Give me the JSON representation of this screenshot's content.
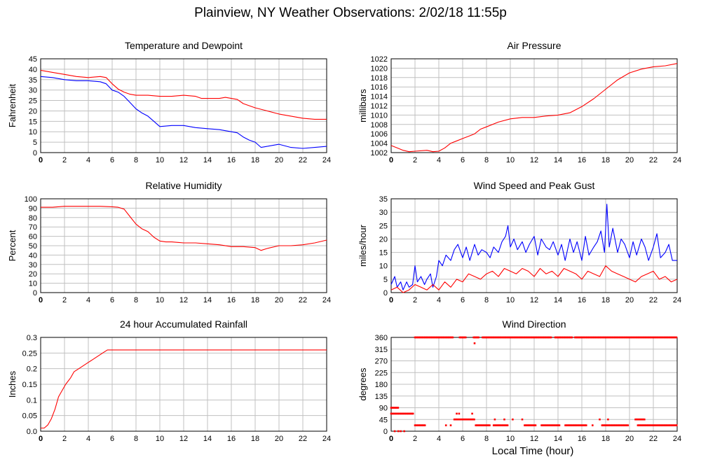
{
  "page": {
    "title": "Plainview, NY Weather Observations: 2/02/18 11:55p",
    "bottom_xlabel": "Local Time (hour)"
  },
  "colors": {
    "temperature": "#ff0000",
    "dewpoint": "#0000ff",
    "grid": "#c0c0c0"
  },
  "chart_data": [
    {
      "type": "line",
      "title": "Temperature and Dewpoint",
      "xlabel": "",
      "ylabel": "Fahrenheit",
      "xlim": [
        0,
        24
      ],
      "ylim": [
        0,
        45
      ],
      "xticks": [
        0,
        2,
        4,
        6,
        8,
        10,
        12,
        14,
        16,
        18,
        20,
        22,
        24
      ],
      "yticks": [
        0,
        5,
        10,
        15,
        20,
        25,
        30,
        35,
        40,
        45
      ],
      "series": [
        {
          "name": "",
          "color": "#ff0000",
          "x": [
            0,
            1,
            2,
            3,
            4,
            5,
            5.5,
            6,
            6.5,
            7,
            7.5,
            8,
            9,
            10,
            11,
            12,
            13,
            13.5,
            14,
            15,
            15.5,
            16,
            16.5,
            17,
            18,
            19,
            20,
            21,
            22,
            23,
            24
          ],
          "y": [
            39.5,
            38.5,
            37.5,
            36.5,
            36,
            36.5,
            36,
            33,
            30.5,
            29,
            28,
            27.5,
            27.5,
            27,
            27,
            27.5,
            27,
            26,
            26,
            26,
            26.5,
            26,
            25.5,
            23.5,
            21.5,
            20,
            18.5,
            17.5,
            16.5,
            16,
            16
          ]
        },
        {
          "name": "",
          "color": "#0000ff",
          "x": [
            0,
            1,
            2,
            3,
            4,
            5,
            5.5,
            6,
            6.5,
            7,
            7.5,
            8,
            8.5,
            9,
            9.5,
            10,
            11,
            12,
            13,
            14,
            15,
            16,
            16.5,
            17,
            17.5,
            18,
            18.5,
            19,
            20,
            21,
            22,
            23,
            24
          ],
          "y": [
            36.5,
            36,
            35,
            34.5,
            34.5,
            34,
            33,
            30,
            29,
            27,
            24,
            21,
            19,
            17.5,
            15,
            12.5,
            13,
            13,
            12,
            11.5,
            11,
            10,
            9.5,
            7.5,
            6,
            5,
            2.5,
            3,
            4,
            2.5,
            2,
            2.5,
            3
          ]
        }
      ]
    },
    {
      "type": "line",
      "title": "Air Pressure",
      "xlabel": "",
      "ylabel": "millibars",
      "xlim": [
        0,
        24
      ],
      "ylim": [
        1002,
        1022
      ],
      "xticks": [
        0,
        2,
        4,
        6,
        8,
        10,
        12,
        14,
        16,
        18,
        20,
        22,
        24
      ],
      "yticks": [
        1002,
        1004,
        1006,
        1008,
        1010,
        1012,
        1014,
        1016,
        1018,
        1020,
        1022
      ],
      "series": [
        {
          "name": "",
          "color": "#ff0000",
          "x": [
            0,
            0.5,
            1,
            1.5,
            2,
            3,
            3.5,
            4,
            4.5,
            5,
            5.5,
            6,
            6.5,
            7,
            7.5,
            8,
            9,
            10,
            11,
            12,
            13,
            14,
            15,
            16,
            17,
            18,
            19,
            20,
            21,
            22,
            23,
            24
          ],
          "y": [
            1003.5,
            1003,
            1002.5,
            1002.2,
            1002.3,
            1002.5,
            1002.2,
            1002.3,
            1003,
            1004,
            1004.5,
            1005,
            1005.5,
            1006,
            1007,
            1007.5,
            1008.5,
            1009.2,
            1009.5,
            1009.5,
            1009.8,
            1010,
            1010.5,
            1011.8,
            1013.5,
            1015.5,
            1017.5,
            1019,
            1019.8,
            1020.3,
            1020.5,
            1021
          ]
        }
      ]
    },
    {
      "type": "line",
      "title": "Relative Humidity",
      "xlabel": "",
      "ylabel": "Percent",
      "xlim": [
        0,
        24
      ],
      "ylim": [
        0,
        100
      ],
      "xticks": [
        0,
        2,
        4,
        6,
        8,
        10,
        12,
        14,
        16,
        18,
        20,
        22,
        24
      ],
      "yticks": [
        0,
        10,
        20,
        30,
        40,
        50,
        60,
        70,
        80,
        90,
        100
      ],
      "series": [
        {
          "name": "",
          "color": "#ff0000",
          "x": [
            0,
            1,
            2,
            3,
            4,
            5,
            6,
            6.5,
            7,
            7.5,
            8,
            8.5,
            9,
            9.5,
            10,
            10.5,
            11,
            12,
            13,
            14,
            15,
            16,
            17,
            18,
            18.5,
            19,
            20,
            21,
            22,
            23,
            24
          ],
          "y": [
            91,
            91,
            92,
            92,
            92,
            92,
            91.5,
            91,
            89,
            81,
            73,
            68,
            65,
            59,
            55,
            54,
            54,
            53,
            53,
            52,
            51,
            49,
            49,
            48,
            45,
            47,
            50,
            50,
            51,
            53,
            56
          ]
        }
      ]
    },
    {
      "type": "line",
      "title": "Wind Speed and Peak Gust",
      "xlabel": "",
      "ylabel": "miles/hour",
      "xlim": [
        0,
        24
      ],
      "ylim": [
        0,
        35
      ],
      "xticks": [
        0,
        2,
        4,
        6,
        8,
        10,
        12,
        14,
        16,
        18,
        20,
        22,
        24
      ],
      "yticks": [
        0,
        5,
        10,
        15,
        20,
        25,
        30,
        35
      ],
      "series": [
        {
          "name": "",
          "color": "#0000ff",
          "x": [
            0,
            0.3,
            0.5,
            0.8,
            1,
            1.3,
            1.5,
            1.8,
            2,
            2.2,
            2.5,
            2.8,
            3,
            3.3,
            3.5,
            3.8,
            4,
            4.3,
            4.6,
            5,
            5.3,
            5.6,
            6,
            6.3,
            6.6,
            7,
            7.3,
            7.6,
            8,
            8.3,
            8.6,
            9,
            9.3,
            9.6,
            9.8,
            10,
            10.3,
            10.6,
            11,
            11.3,
            11.6,
            12,
            12.3,
            12.6,
            13,
            13.3,
            13.6,
            14,
            14.3,
            14.6,
            15,
            15.3,
            15.6,
            16,
            16.3,
            16.6,
            17,
            17.3,
            17.6,
            17.9,
            18.1,
            18.3,
            18.6,
            19,
            19.3,
            19.6,
            20,
            20.3,
            20.6,
            21,
            21.3,
            21.6,
            22,
            22.3,
            22.6,
            23,
            23.3,
            23.6,
            24
          ],
          "y": [
            3,
            6,
            2,
            4,
            1,
            4,
            2,
            3,
            10,
            4,
            6,
            3,
            5,
            7,
            2,
            6,
            12,
            10,
            14,
            12,
            16,
            18,
            13,
            17,
            12,
            18,
            14,
            16,
            15,
            13,
            17,
            15,
            19,
            21,
            25,
            17,
            20,
            16,
            19,
            15,
            18,
            21,
            14,
            20,
            17,
            16,
            19,
            14,
            18,
            12,
            20,
            15,
            19,
            12,
            21,
            14,
            17,
            19,
            23,
            15,
            33,
            17,
            24,
            15,
            20,
            18,
            13,
            19,
            14,
            20,
            17,
            12,
            17,
            22,
            13,
            15,
            18,
            12,
            12
          ]
        },
        {
          "name": "",
          "color": "#ff0000",
          "x": [
            0,
            0.5,
            1,
            1.5,
            2,
            2.5,
            3,
            3.5,
            4,
            4.5,
            5,
            5.5,
            6,
            6.5,
            7,
            7.5,
            8,
            8.5,
            9,
            9.5,
            10,
            10.5,
            11,
            11.5,
            12,
            12.5,
            13,
            13.5,
            14,
            14.5,
            15,
            15.5,
            16,
            16.5,
            17,
            17.5,
            18,
            18.5,
            19,
            19.5,
            20,
            20.5,
            21,
            21.5,
            22,
            22.5,
            23,
            23.5,
            24
          ],
          "y": [
            1,
            2,
            0,
            1,
            3,
            2,
            1,
            3,
            1,
            4,
            2,
            5,
            4,
            7,
            6,
            5,
            7,
            8,
            6,
            9,
            8,
            7,
            9,
            8,
            6,
            9,
            7,
            8,
            6,
            9,
            8,
            7,
            5,
            8,
            7,
            6,
            10,
            8,
            7,
            6,
            5,
            4,
            6,
            7,
            8,
            5,
            6,
            4,
            5
          ]
        }
      ]
    },
    {
      "type": "line",
      "title": "24 hour Accumulated Rainfall",
      "xlabel": "",
      "ylabel": "Inches",
      "xlim": [
        0,
        24
      ],
      "ylim": [
        0,
        0.3
      ],
      "xticks": [
        0,
        2,
        4,
        6,
        8,
        10,
        12,
        14,
        16,
        18,
        20,
        22,
        24
      ],
      "yticks": [
        0,
        0.05,
        0.1,
        0.15,
        0.2,
        0.25,
        0.3
      ],
      "series": [
        {
          "name": "",
          "color": "#ff0000",
          "x": [
            0,
            0.3,
            0.6,
            0.9,
            1.2,
            1.5,
            1.8,
            2.1,
            2.5,
            2.8,
            3.2,
            3.6,
            4,
            4.4,
            4.8,
            5.2,
            5.6,
            6,
            8,
            10,
            12,
            14,
            16,
            18,
            20,
            22,
            24
          ],
          "y": [
            0.01,
            0.01,
            0.02,
            0.04,
            0.07,
            0.11,
            0.13,
            0.15,
            0.17,
            0.19,
            0.2,
            0.21,
            0.22,
            0.23,
            0.24,
            0.25,
            0.26,
            0.26,
            0.26,
            0.26,
            0.26,
            0.26,
            0.26,
            0.26,
            0.26,
            0.26,
            0.26
          ]
        }
      ]
    },
    {
      "type": "scatter",
      "title": "Wind Direction",
      "xlabel": "Local Time (hour)",
      "ylabel": "degrees",
      "xlim": [
        0,
        24
      ],
      "ylim": [
        0,
        360
      ],
      "xticks": [
        0,
        2,
        4,
        6,
        8,
        10,
        12,
        14,
        16,
        18,
        20,
        22,
        24
      ],
      "yticks": [
        0,
        45,
        90,
        135,
        180,
        225,
        270,
        315,
        360
      ],
      "series": [
        {
          "name": "",
          "color": "#ff0000",
          "segments": [
            {
              "x_from": 2,
              "x_to": 24,
              "y": 360,
              "gaps": [
                [
                  5.2,
                  5.7
                ],
                [
                  6.3,
                  6.9
                ],
                [
                  7.4,
                  7.6
                ],
                [
                  13.5,
                  13.7
                ],
                [
                  15.2,
                  15.4
                ]
              ]
            },
            {
              "x_from": 2,
              "x_to": 2.9,
              "y": 22.5
            },
            {
              "x_from": 5.3,
              "x_to": 7,
              "y": 45
            },
            {
              "x_from": 7.1,
              "x_to": 9.8,
              "y": 22.5,
              "gaps": [
                [
                  8.3,
                  8.6
                ]
              ]
            },
            {
              "x_from": 11.2,
              "x_to": 16.4,
              "y": 22.5,
              "gaps": [
                [
                  12.2,
                  12.6
                ],
                [
                  14.2,
                  14.6
                ]
              ]
            },
            {
              "x_from": 17.7,
              "x_to": 19.9,
              "y": 22.5
            },
            {
              "x_from": 20.7,
              "x_to": 24,
              "y": 22.5
            },
            {
              "x_from": 20.5,
              "x_to": 21.3,
              "y": 45
            },
            {
              "x_from": 0,
              "x_to": 1.9,
              "y": 67.5
            },
            {
              "x_from": 0,
              "x_to": 0.6,
              "y": 90
            }
          ],
          "x": [
            0.3,
            0.6,
            0.8,
            1.1,
            4.6,
            5,
            5.5,
            5.7,
            6.8,
            7,
            8.7,
            9.5,
            10.2,
            11,
            16.9,
            17.5,
            18.2
          ],
          "y": [
            0,
            0,
            0,
            0,
            22.5,
            22.5,
            67.5,
            67.5,
            67.5,
            337.5,
            45,
            45,
            45,
            45,
            22.5,
            45,
            45
          ]
        }
      ]
    }
  ]
}
